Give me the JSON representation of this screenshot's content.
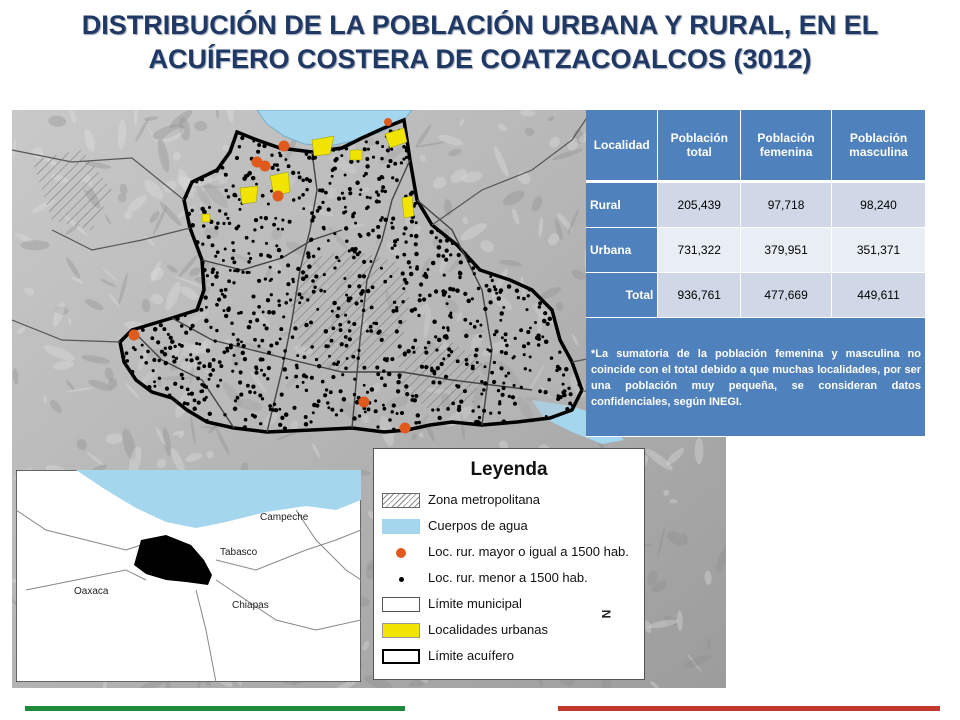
{
  "title": {
    "line1": "DISTRIBUCIÓN DE LA POBLACIÓN URBANA Y RURAL, EN EL",
    "line2": "ACUÍFERO COSTERA DE COATZACOALCOS (3012)"
  },
  "table": {
    "headers": [
      "Localidad",
      "Población total",
      "Población femenina",
      "Población masculina"
    ],
    "rows": [
      {
        "label": "Rural",
        "total": "205,439",
        "femenina": "97,718",
        "masculina": "98,240"
      },
      {
        "label": "Urbana",
        "total": "731,322",
        "femenina": "379,951",
        "masculina": "351,371"
      },
      {
        "label": "Total",
        "total": "936,761",
        "femenina": "477,669",
        "masculina": "449,611"
      }
    ],
    "note": "*La sumatoria de la población femenina y masculina no coincide con el total debido a que muchas localidades, por ser una población muy pequeña, se consideran datos confidenciales, según INEGI."
  },
  "legend": {
    "title": "Leyenda",
    "items": [
      {
        "label": "Zona metropolitana"
      },
      {
        "label": "Cuerpos de agua"
      },
      {
        "label": "Loc. rur. mayor o igual a 1500 hab."
      },
      {
        "label": "Loc. rur. menor a 1500 hab."
      },
      {
        "label": "Límite municipal"
      },
      {
        "label": "Localidades urbanas"
      },
      {
        "label": "Límite acuífero"
      }
    ]
  },
  "inset": {
    "labels": {
      "campeche": "Campeche",
      "tabasco": "Tabasco",
      "oaxaca": "Oaxaca",
      "chiapas": "Chiapas"
    }
  },
  "north_arrow": "N",
  "colors": {
    "title": "#1f3864",
    "table_header": "#4f81bd",
    "water": "#a4d6ee",
    "urban": "#f0e400",
    "large_rural": "#e05a1e",
    "bar_green": "#1e8a3c",
    "bar_red": "#c0392b"
  }
}
